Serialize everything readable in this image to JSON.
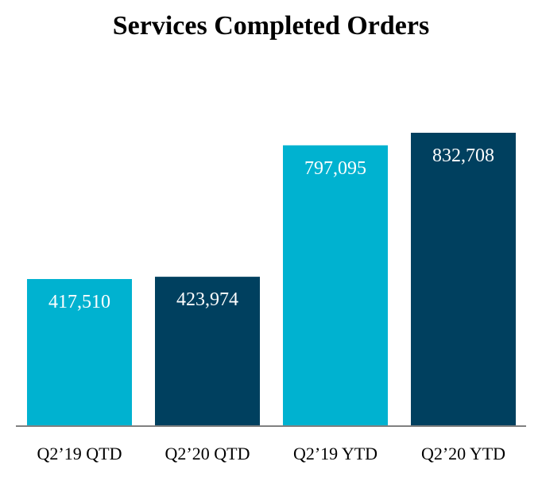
{
  "chart_data": {
    "type": "bar",
    "title": "Services Completed Orders",
    "categories": [
      "Q2’19 QTD",
      "Q2’20 QTD",
      "Q2’19 YTD",
      "Q2’20 YTD"
    ],
    "values": [
      417510,
      423974,
      797095,
      832708
    ],
    "value_labels": [
      "417,510",
      "423,974",
      "797,095",
      "832,708"
    ],
    "bar_colors": [
      "#00B2D0",
      "#00405F",
      "#00B2D0",
      "#00405F"
    ],
    "axis_color": "#808080",
    "xlabel": "",
    "ylabel": "",
    "ylim": [
      0,
      832708
    ],
    "grid": false,
    "legend": "none"
  }
}
